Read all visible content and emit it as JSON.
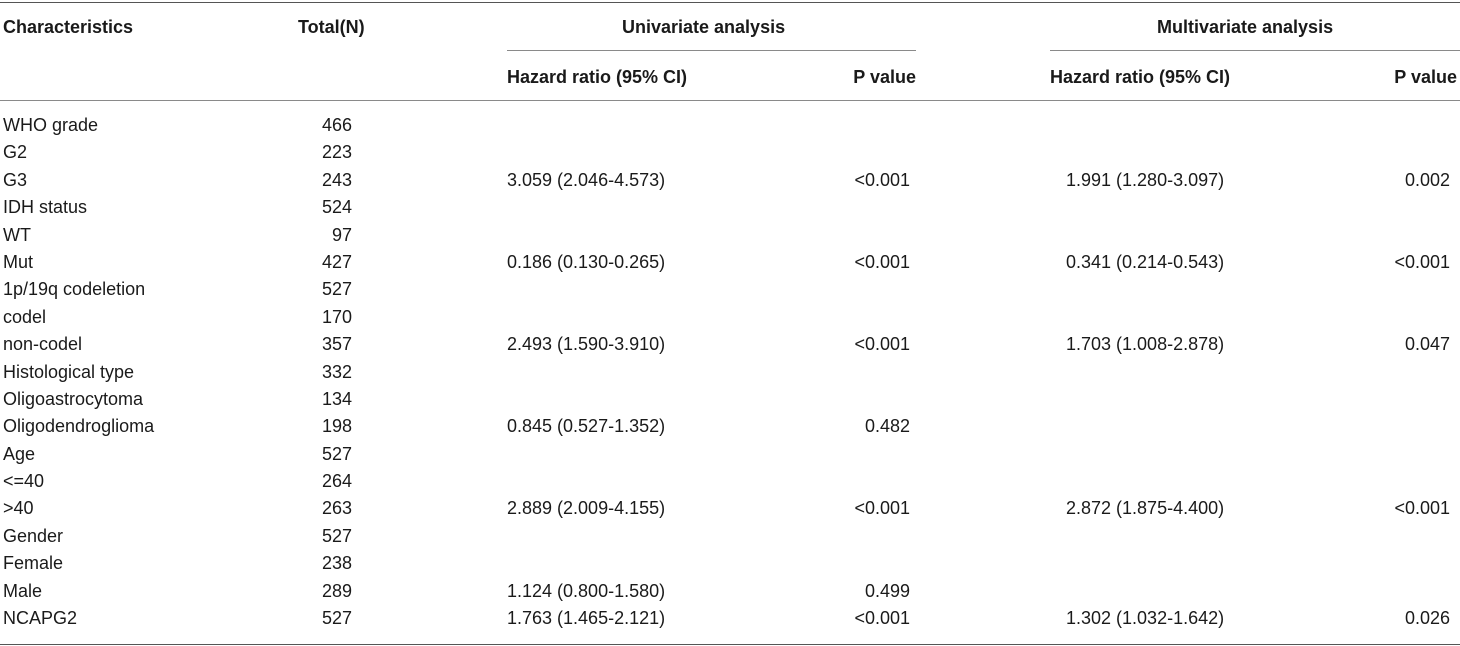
{
  "table": {
    "headers": {
      "characteristics": "Characteristics",
      "total": "Total(N)",
      "univariate": "Univariate analysis",
      "multivariate": "Multivariate analysis",
      "uni_hr": "Hazard ratio (95% CI)",
      "uni_p": "P value",
      "multi_hr": "Hazard ratio (95% CI)",
      "multi_p": "P value"
    },
    "rows": [
      {
        "name": "WHO grade",
        "total": "466",
        "uni_hr": "",
        "uni_p": "",
        "multi_hr": "",
        "multi_p": ""
      },
      {
        "name": "G2",
        "total": "223",
        "uni_hr": "",
        "uni_p": "",
        "multi_hr": "",
        "multi_p": ""
      },
      {
        "name": "G3",
        "total": "243",
        "uni_hr": "3.059 (2.046-4.573)",
        "uni_p": "<0.001",
        "multi_hr": "1.991 (1.280-3.097)",
        "multi_p": "0.002"
      },
      {
        "name": "IDH status",
        "total": "524",
        "uni_hr": "",
        "uni_p": "",
        "multi_hr": "",
        "multi_p": ""
      },
      {
        "name": "WT",
        "total": "97",
        "uni_hr": "",
        "uni_p": "",
        "multi_hr": "",
        "multi_p": ""
      },
      {
        "name": "Mut",
        "total": "427",
        "uni_hr": "0.186 (0.130-0.265)",
        "uni_p": "<0.001",
        "multi_hr": "0.341 (0.214-0.543)",
        "multi_p": "<0.001"
      },
      {
        "name": "1p/19q codeletion",
        "total": "527",
        "uni_hr": "",
        "uni_p": "",
        "multi_hr": "",
        "multi_p": ""
      },
      {
        "name": "codel",
        "total": "170",
        "uni_hr": "",
        "uni_p": "",
        "multi_hr": "",
        "multi_p": ""
      },
      {
        "name": "non-codel",
        "total": "357",
        "uni_hr": "2.493 (1.590-3.910)",
        "uni_p": "<0.001",
        "multi_hr": "1.703 (1.008-2.878)",
        "multi_p": "0.047"
      },
      {
        "name": "Histological type",
        "total": "332",
        "uni_hr": "",
        "uni_p": "",
        "multi_hr": "",
        "multi_p": ""
      },
      {
        "name": "Oligoastrocytoma",
        "total": "134",
        "uni_hr": "",
        "uni_p": "",
        "multi_hr": "",
        "multi_p": ""
      },
      {
        "name": "Oligodendroglioma",
        "total": "198",
        "uni_hr": "0.845 (0.527-1.352)",
        "uni_p": "0.482",
        "multi_hr": "",
        "multi_p": ""
      },
      {
        "name": "Age",
        "total": "527",
        "uni_hr": "",
        "uni_p": "",
        "multi_hr": "",
        "multi_p": ""
      },
      {
        "name": "<=40",
        "total": "264",
        "uni_hr": "",
        "uni_p": "",
        "multi_hr": "",
        "multi_p": ""
      },
      {
        "name": ">40",
        "total": "263",
        "uni_hr": "2.889 (2.009-4.155)",
        "uni_p": "<0.001",
        "multi_hr": "2.872 (1.875-4.400)",
        "multi_p": "<0.001"
      },
      {
        "name": "Gender",
        "total": "527",
        "uni_hr": "",
        "uni_p": "",
        "multi_hr": "",
        "multi_p": ""
      },
      {
        "name": "Female",
        "total": "238",
        "uni_hr": "",
        "uni_p": "",
        "multi_hr": "",
        "multi_p": ""
      },
      {
        "name": "Male",
        "total": "289",
        "uni_hr": "1.124 (0.800-1.580)",
        "uni_p": "0.499",
        "multi_hr": "",
        "multi_p": ""
      },
      {
        "name": "NCAPG2",
        "total": "527",
        "uni_hr": "1.763 (1.465-2.121)",
        "uni_p": "<0.001",
        "multi_hr": "1.302 (1.032-1.642)",
        "multi_p": "0.026"
      }
    ]
  }
}
